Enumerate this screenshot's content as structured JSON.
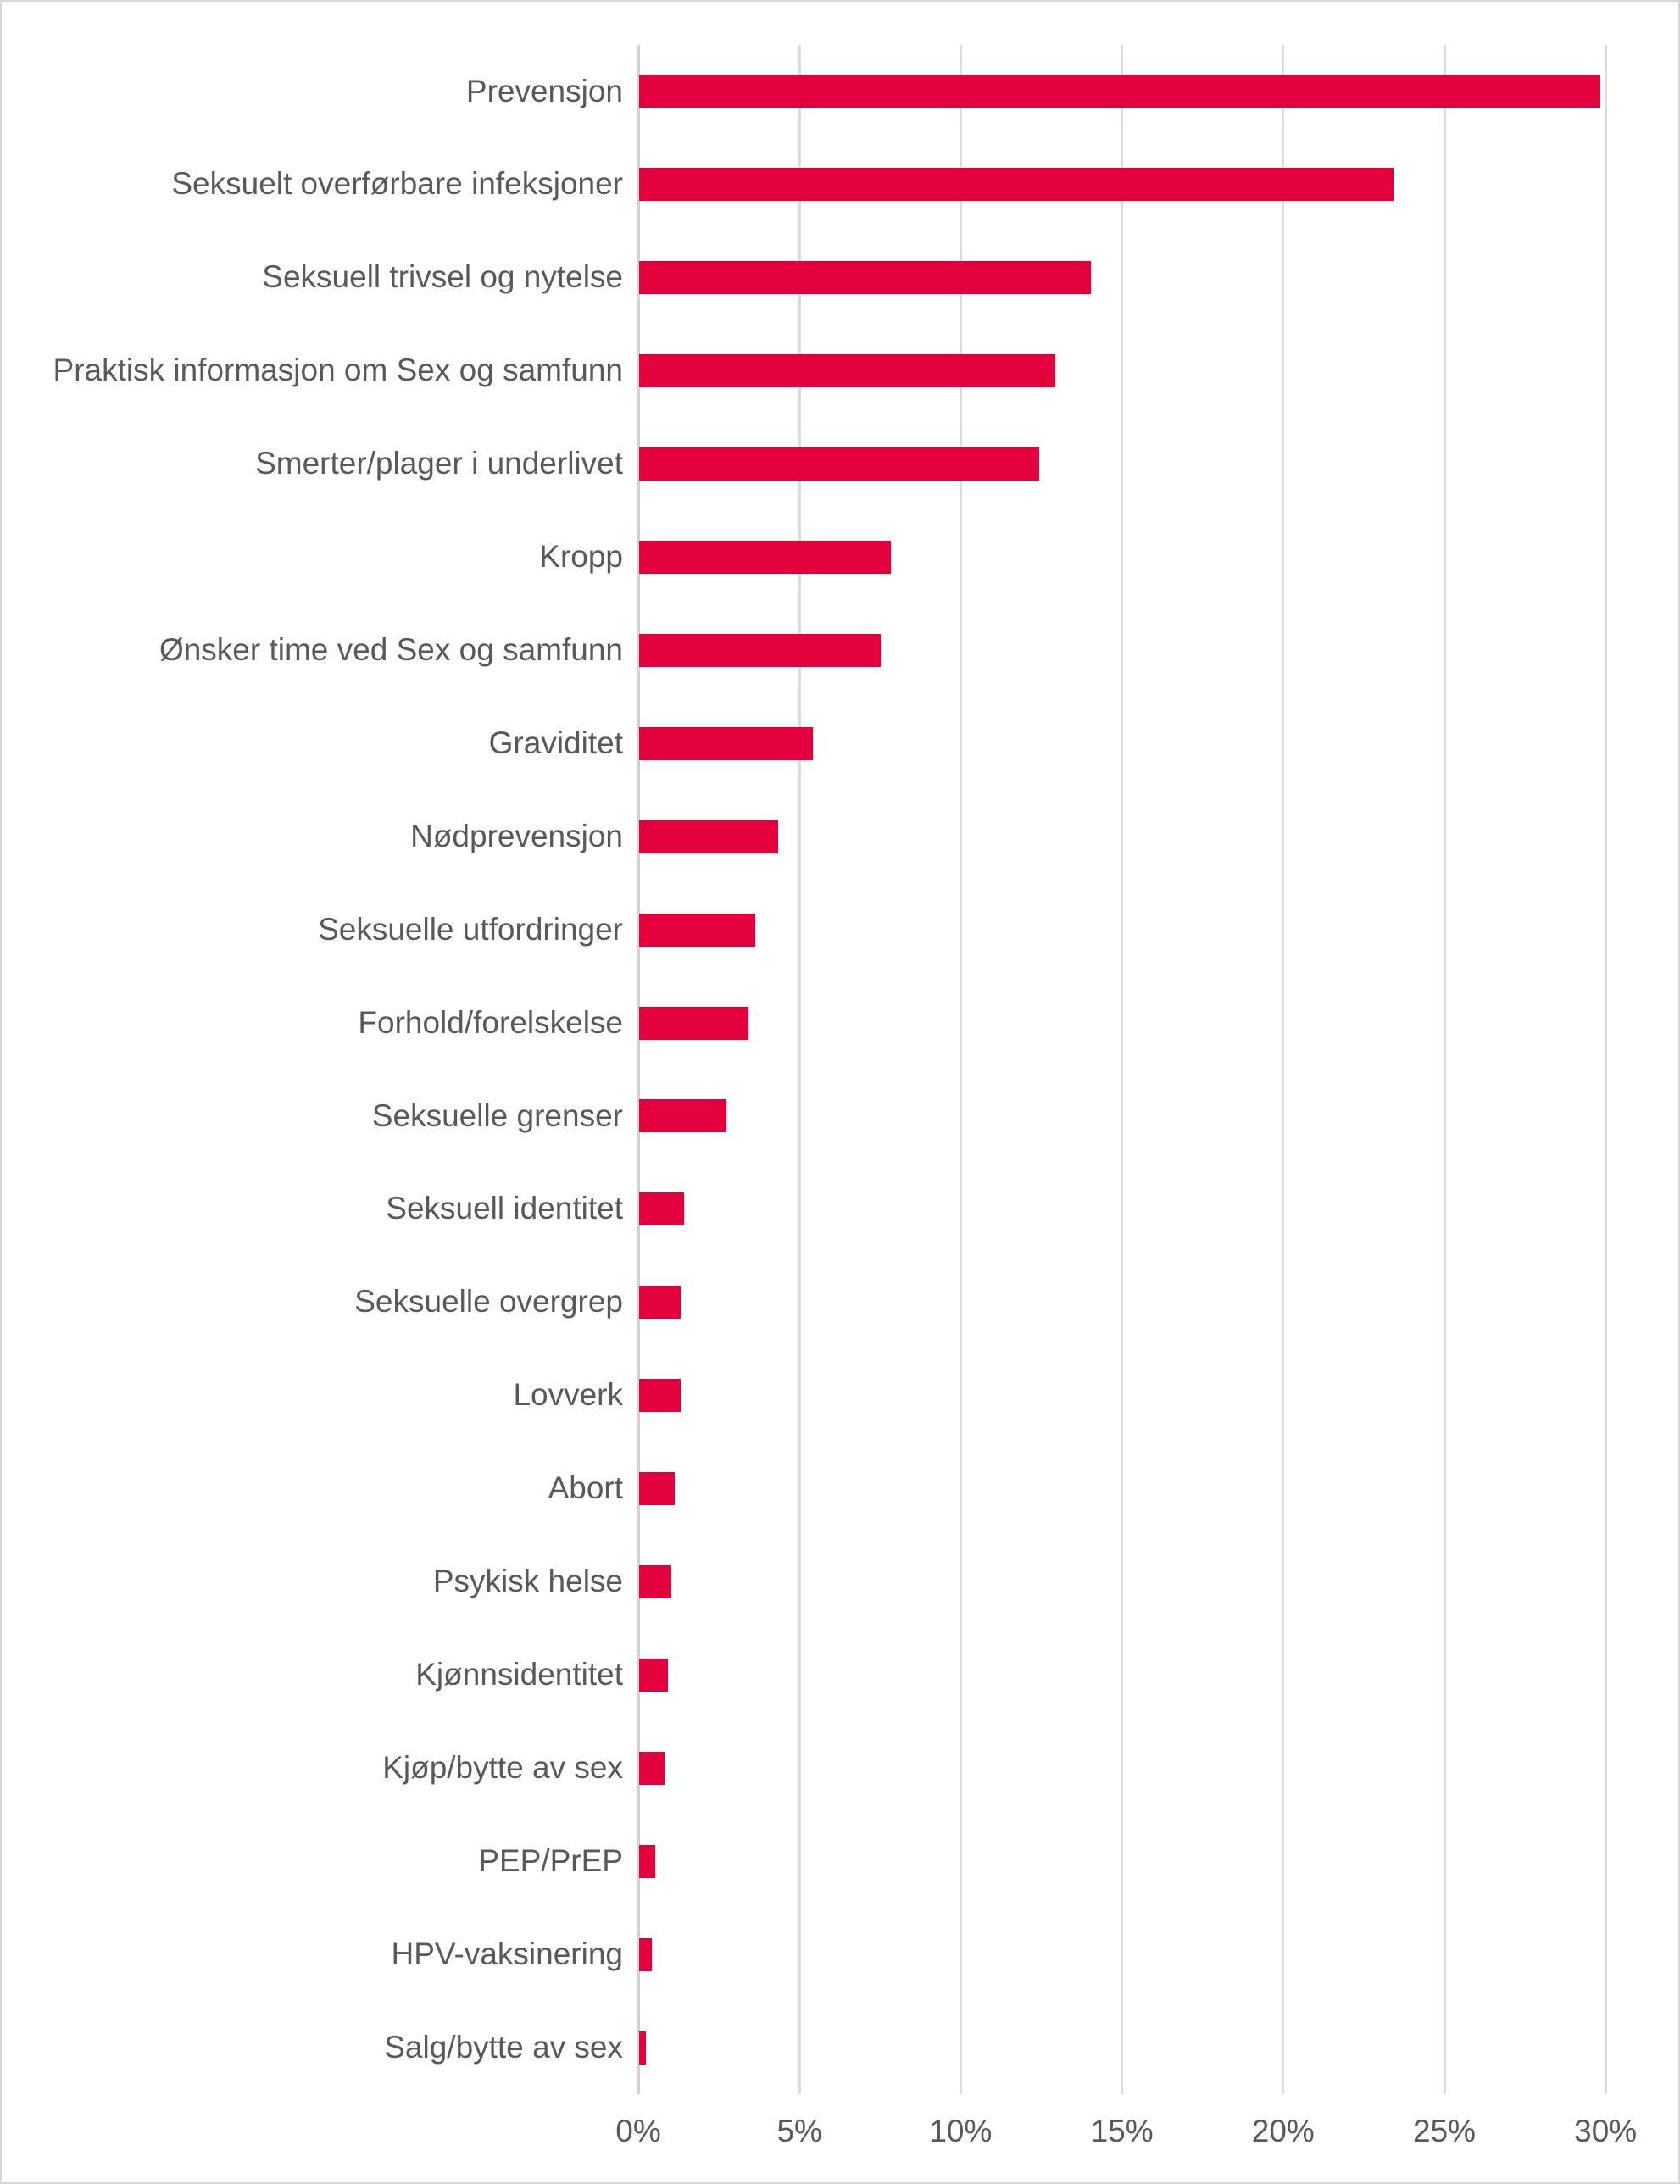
{
  "chart_data": {
    "type": "bar",
    "orientation": "horizontal",
    "title": "",
    "xlabel": "",
    "ylabel": "",
    "unit": "%",
    "grid": true,
    "legend": false,
    "xlim": [
      0,
      30
    ],
    "x_tick_values": [
      0,
      5,
      10,
      15,
      20,
      25,
      30
    ],
    "x_tick_labels": [
      "0%",
      "5%",
      "10%",
      "15%",
      "20%",
      "25%",
      "30%"
    ],
    "categories": [
      "Prevensjon",
      "Seksuelt overførbare infeksjoner",
      "Seksuell trivsel og nytelse",
      "Praktisk informasjon om Sex og samfunn",
      "Smerter/plager i underlivet",
      "Kropp",
      "Ønsker time ved Sex og samfunn",
      "Graviditet",
      "Nødprevensjon",
      "Seksuelle utfordringer",
      "Forhold/forelskelse",
      "Seksuelle grenser",
      "Seksuell identitet",
      "Seksuelle overgrep",
      "Lovverk",
      "Abort",
      "Psykisk helse",
      "Kjønnsidentitet",
      "Kjøp/bytte av sex",
      "PEP/PrEP",
      "HPV-vaksinering",
      "Salg/bytte av sex"
    ],
    "values": [
      29.8,
      23.4,
      14.0,
      12.9,
      12.4,
      7.8,
      7.5,
      5.4,
      4.3,
      3.6,
      3.4,
      2.7,
      1.4,
      1.3,
      1.3,
      1.1,
      1.0,
      0.9,
      0.8,
      0.5,
      0.4,
      0.2
    ],
    "colors": {
      "bar": "#e4003c",
      "gridline": "#dcdcdc",
      "axis_line": "#d2d2d2",
      "text": "#595959",
      "border": "#d6d6d6",
      "background": "#ffffff"
    }
  }
}
